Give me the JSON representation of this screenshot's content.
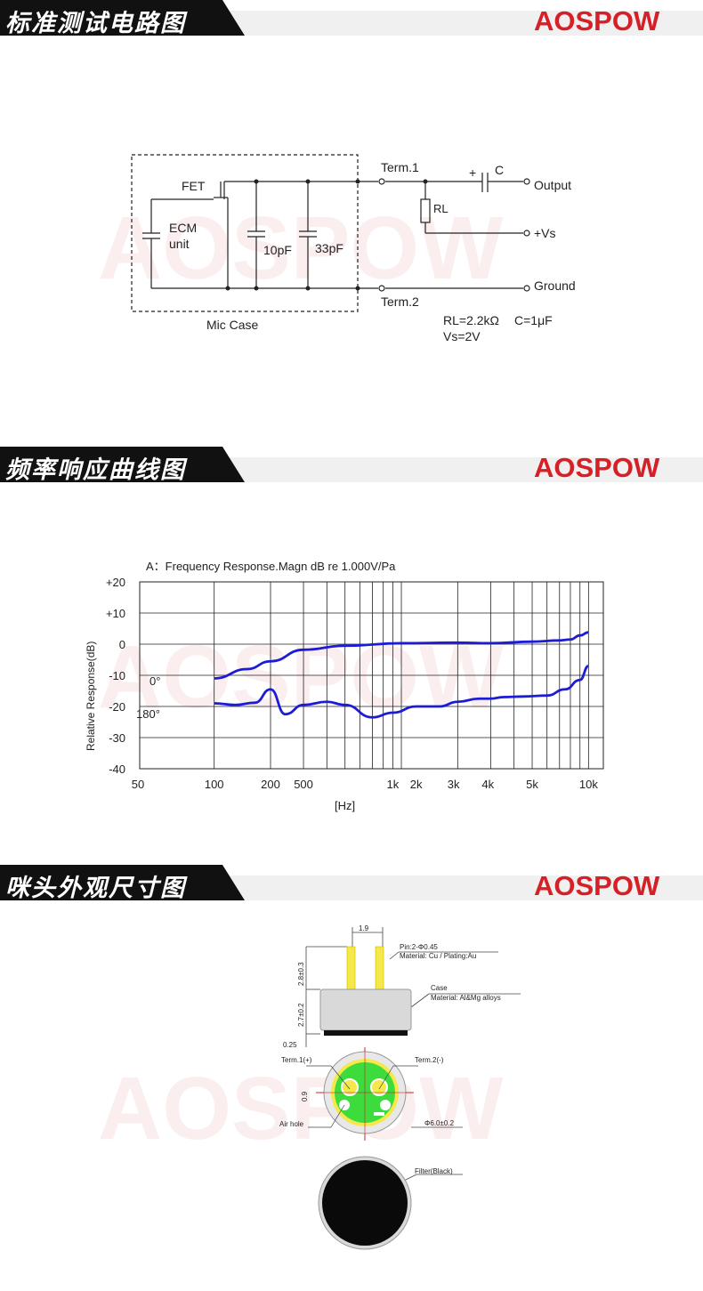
{
  "brand": {
    "logo_text": "AOSPOW",
    "accent": "#d62027"
  },
  "sections": [
    {
      "title": "标准测试电路图"
    },
    {
      "title": "频率响应曲线图"
    },
    {
      "title": "咪头外观尺寸图"
    }
  ],
  "circuit": {
    "fet": "FET",
    "ecm_line1": "ECM",
    "ecm_line2": "unit",
    "cap1": "10pF",
    "cap2": "33pF",
    "mic_case": "Mic Case",
    "term1": "Term.1",
    "term2": "Term.2",
    "cap_plus": "+",
    "cap_label": "C",
    "output": "Output",
    "rl": "RL",
    "vs": "+Vs",
    "ground": "Ground",
    "rl_value": "RL=2.2kΩ",
    "c_value": "C=1μF",
    "vs_value": "Vs=2V"
  },
  "chart_data": {
    "type": "line",
    "title": "A：Frequency Response.Magn  dB re 1.000V/Pa",
    "ylabel": "Relative Response(dB)",
    "xlabel": "[Hz]",
    "x_scale": "log",
    "ylim": [
      -40,
      20
    ],
    "y_ticks": [
      "+20",
      "+10",
      "0",
      "-10",
      "-20",
      "-30",
      "-40"
    ],
    "x_ticks": [
      "50",
      "100",
      "200",
      "500",
      "1k",
      "2k",
      "3k",
      "4k",
      "5k",
      "10k"
    ],
    "series": [
      {
        "name": "0°",
        "x": [
          100,
          150,
          200,
          300,
          500,
          1000,
          2000,
          3000,
          5000,
          7000,
          8000,
          9000,
          10000
        ],
        "y": [
          -11,
          -8,
          -5.5,
          -1.8,
          -0.5,
          0.3,
          0.5,
          0.3,
          0.8,
          1.2,
          1.5,
          2.8,
          3.8
        ]
      },
      {
        "name": "180°",
        "x": [
          100,
          130,
          165,
          200,
          240,
          300,
          400,
          500,
          700,
          900,
          1200,
          1600,
          2000,
          2600,
          3000,
          3500,
          4500,
          6000,
          7500,
          9000,
          10000
        ],
        "y": [
          -19,
          -19.5,
          -18.8,
          -14.5,
          -22.5,
          -19.5,
          -18.5,
          -19.5,
          -23.5,
          -22,
          -20,
          -20,
          -18.5,
          -17.5,
          -17.5,
          -17,
          -16.8,
          -16.5,
          -14.5,
          -11.5,
          -7
        ]
      }
    ],
    "grid": true
  },
  "dimensions": {
    "pin_spacing": "1.9",
    "pin_label": "Pin:2-Φ0.45",
    "pin_material": "Material: Cu / Plating:Au",
    "pin_height": "2.8±0.3",
    "case_label": "Case",
    "case_material": "Material: Al&Mg alloys",
    "case_height": "2.7±0.2",
    "bottom": "0.25",
    "term1": "Term.1(+)",
    "term2": "Term.2(-)",
    "gap": "0.9",
    "air_hole": "Air hole",
    "diameter": "Φ6.0±0.2",
    "filter": "Filter(Black)"
  }
}
